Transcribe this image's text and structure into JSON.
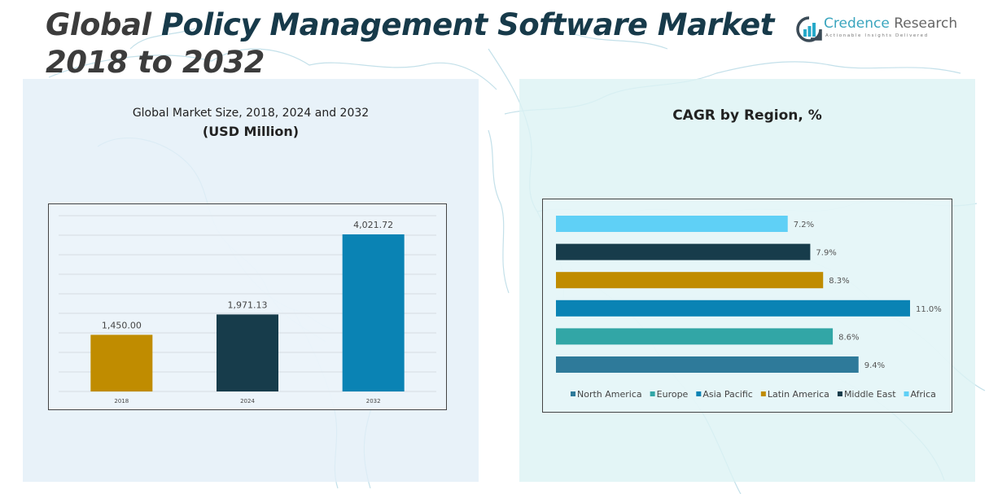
{
  "header": {
    "title_line1_part1": "Global ",
    "title_line1_part2": "Policy Management Software Market",
    "title_line2": "2018 to 2032"
  },
  "logo": {
    "icon": "bar-chart-circle-icon",
    "name_part1": "Credence ",
    "name_part2": "Research",
    "tagline": "Actionable Insights Delivered"
  },
  "colors": {
    "title_dark": "#3c3c3c",
    "title_accent": "#173a4a",
    "logo_accent": "#3aa5be"
  },
  "chart_data": [
    {
      "type": "bar",
      "title": "Global Market Size, 2018, 2024 and 2032",
      "subtitle": "(USD Million)",
      "categories": [
        "2018",
        "2024",
        "2032"
      ],
      "values": [
        1450.0,
        1971.13,
        4021.72
      ],
      "value_labels": [
        "1,450.00",
        "1,971.13",
        "4,021.72"
      ],
      "colors": [
        "#c08c00",
        "#173c4b",
        "#0a83b4"
      ],
      "xlabel": "",
      "ylabel": "",
      "ylim": [
        0,
        4500
      ],
      "grid": true,
      "legend": "none"
    },
    {
      "type": "bar",
      "orientation": "horizontal",
      "title": "CAGR by Region, %",
      "categories": [
        "Africa",
        "Middle East",
        "Latin America",
        "Asia Pacific",
        "Europe",
        "North America"
      ],
      "values": [
        7.2,
        7.9,
        8.3,
        11.0,
        8.6,
        9.4
      ],
      "value_labels": [
        "7.2%",
        "7.9%",
        "8.3%",
        "11.0%",
        "8.6%",
        "9.4%"
      ],
      "colors": [
        "#5fd0f6",
        "#173c4b",
        "#c08c00",
        "#0a83b4",
        "#32a6a6",
        "#2e7a9a"
      ],
      "xlim": [
        0,
        11.0
      ],
      "grid": false,
      "legend": "bottom",
      "legend_entries": [
        {
          "label": "North America",
          "color": "#2e7a9a"
        },
        {
          "label": "Europe",
          "color": "#32a6a6"
        },
        {
          "label": "Asia Pacific",
          "color": "#0a83b4"
        },
        {
          "label": "Latin America",
          "color": "#c08c00"
        },
        {
          "label": "Middle East",
          "color": "#173c4b"
        },
        {
          "label": "Africa",
          "color": "#5fd0f6"
        }
      ]
    }
  ]
}
